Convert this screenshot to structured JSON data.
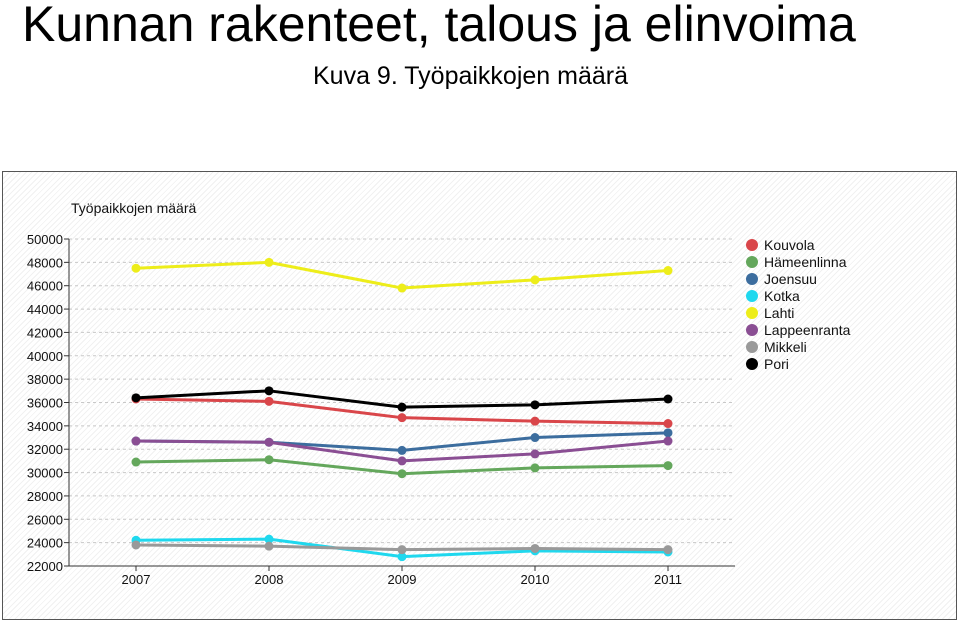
{
  "slide": {
    "title": "Kunnan rakenteet, talous ja elinvoima",
    "subtitle": "Kuva 9. Työpaikkojen määrä"
  },
  "chart_data": {
    "type": "line",
    "title": "Työpaikkojen määrä",
    "xlabel": "",
    "ylabel": "",
    "categories": [
      "2007",
      "2008",
      "2009",
      "2010",
      "2011"
    ],
    "ylim": [
      22000,
      50000
    ],
    "yticks": [
      22000,
      24000,
      26000,
      28000,
      30000,
      32000,
      34000,
      36000,
      38000,
      40000,
      42000,
      44000,
      46000,
      48000,
      50000
    ],
    "grid": "horizontal dashed",
    "legend_position": "right",
    "series": [
      {
        "name": "Kouvola",
        "color": "#d9464a",
        "values": [
          36300,
          36100,
          34700,
          34400,
          34200
        ]
      },
      {
        "name": "Hämeenlinna",
        "color": "#64a75c",
        "values": [
          30900,
          31100,
          29900,
          30400,
          30600
        ]
      },
      {
        "name": "Joensuu",
        "color": "#3c6d9e",
        "values": [
          32700,
          32600,
          31900,
          33000,
          33400
        ]
      },
      {
        "name": "Kotka",
        "color": "#1fd8ee",
        "values": [
          24200,
          24300,
          22800,
          23300,
          23200
        ]
      },
      {
        "name": "Lahti",
        "color": "#eded1a",
        "values": [
          47500,
          48000,
          45800,
          46500,
          47300
        ]
      },
      {
        "name": "Lappeenranta",
        "color": "#8a4e93",
        "values": [
          32700,
          32600,
          31000,
          31600,
          32700
        ]
      },
      {
        "name": "Mikkeli",
        "color": "#999999",
        "values": [
          23800,
          23700,
          23400,
          23500,
          23400
        ]
      },
      {
        "name": "Pori",
        "color": "#000000",
        "values": [
          36400,
          37000,
          35600,
          35800,
          36300
        ]
      }
    ]
  }
}
